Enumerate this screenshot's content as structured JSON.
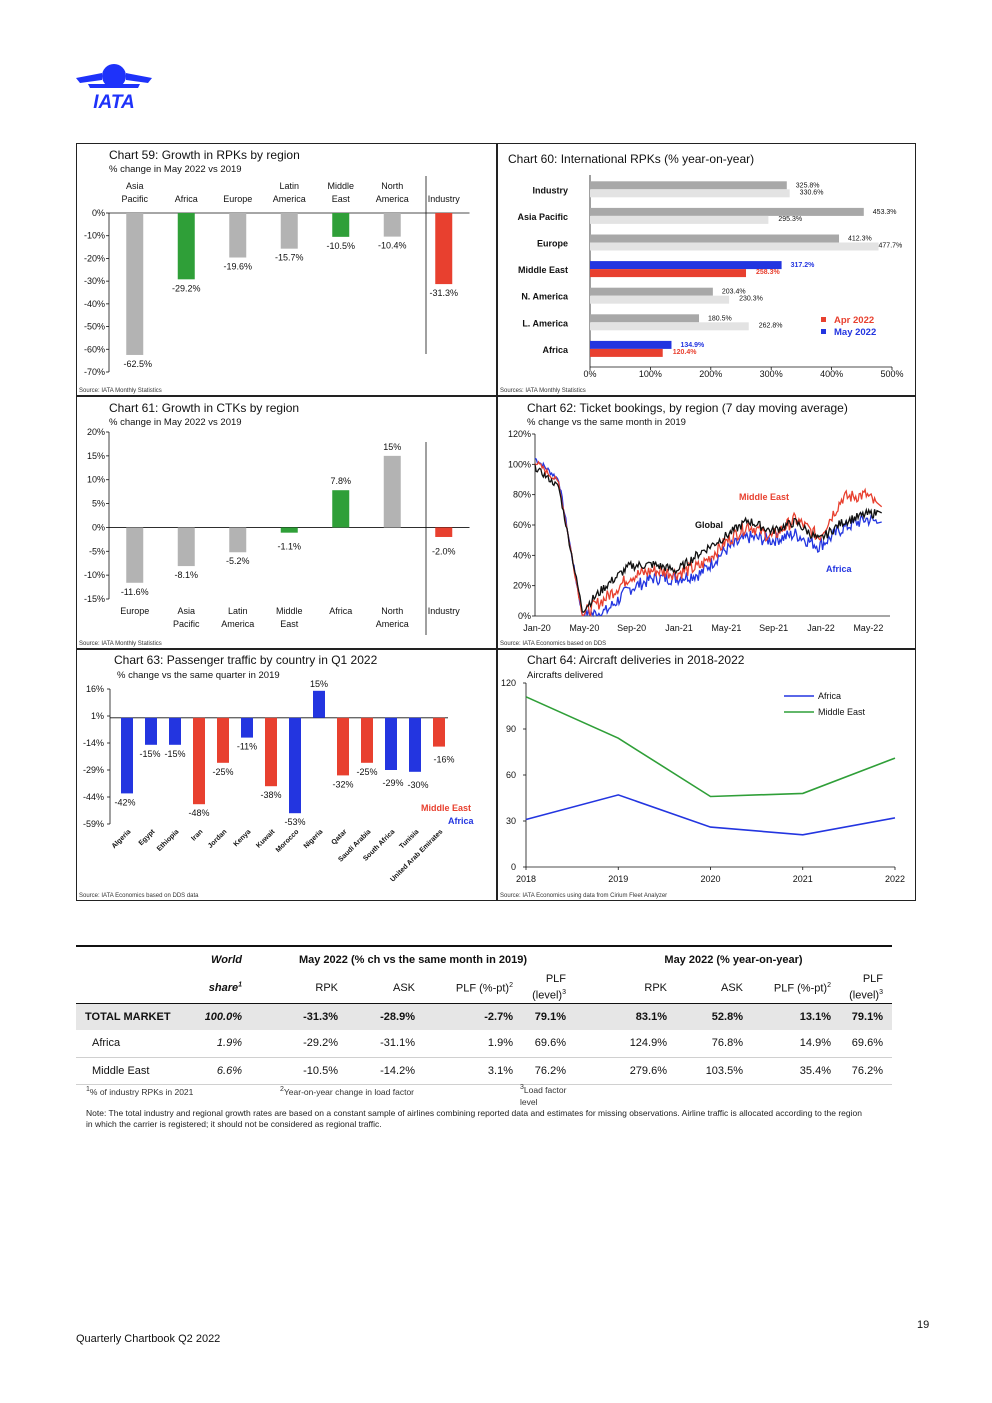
{
  "brand": {
    "name": "IATA",
    "color": "#1e32fa"
  },
  "colors": {
    "grey": "#b3b3b3",
    "lightgrey": "#e3e3e3",
    "darkgrey": "#a8a8a8",
    "red": "#e8402f",
    "green": "#2f9f38",
    "blue": "#2335e0",
    "black": "#111111",
    "darkgreen": "#2f9f38"
  },
  "charts": {
    "c59": {
      "title": "Chart 59: Growth in RPKs by region",
      "subtitle": "% change in May 2022 vs 2019",
      "source": "Source: IATA Monthly Statistics",
      "chart_data": {
        "type": "bar",
        "categories": [
          [
            "Asia",
            "Pacific"
          ],
          [
            "Africa"
          ],
          [
            "Europe"
          ],
          [
            "Latin",
            "America"
          ],
          [
            "Middle",
            "East"
          ],
          [
            "North",
            "America"
          ],
          [
            "Industry"
          ]
        ],
        "values": [
          -62.5,
          -29.2,
          -19.6,
          -15.7,
          -10.5,
          -10.4,
          -31.3
        ],
        "labels": [
          "-62.5%",
          "-29.2%",
          "-19.6%",
          "-15.7%",
          "-10.5%",
          "-10.4%",
          "-31.3%"
        ],
        "bar_colors": [
          "grey",
          "green",
          "grey",
          "grey",
          "green",
          "grey",
          "red"
        ],
        "ylim": [
          -70,
          0
        ],
        "yticks": [
          0,
          -10,
          -20,
          -30,
          -40,
          -50,
          -60,
          -70
        ],
        "yticklabels": [
          "0%",
          "-10%",
          "-20%",
          "-30%",
          "-40%",
          "-50%",
          "-60%",
          "-70%"
        ]
      }
    },
    "c60": {
      "title": "Chart 60: International RPKs (% year-on-year)",
      "source": "Sources: IATA Monthly Statistics",
      "chart_data": {
        "type": "bar",
        "orientation": "horizontal",
        "categories": [
          "Industry",
          "Asia Pacific",
          "Europe",
          "Middle East",
          "N. America",
          "L. America",
          "Africa"
        ],
        "series": [
          {
            "name": "May 2022",
            "values": [
              325.8,
              453.3,
              412.3,
              317.2,
              203.4,
              180.5,
              134.9
            ],
            "labels": [
              "325.8%",
              "453.3%",
              "412.3%",
              "317.2%",
              "203.4%",
              "180.5%",
              "134.9%"
            ]
          },
          {
            "name": "Apr 2022",
            "values": [
              330.6,
              295.3,
              477.7,
              258.3,
              230.3,
              262.8,
              120.4
            ],
            "labels": [
              "330.6%",
              "295.3%",
              "477.7%",
              "258.3%",
              "230.3%",
              "262.8%",
              "120.4%"
            ]
          }
        ],
        "xlim": [
          0,
          500
        ],
        "xticks": [
          0,
          100,
          200,
          300,
          400,
          500
        ],
        "xticklabels": [
          "0%",
          "100%",
          "200%",
          "300%",
          "400%",
          "500%"
        ],
        "legend": [
          "Apr 2022",
          "May 2022"
        ],
        "legend_position": "bottom-right"
      }
    },
    "c61": {
      "title": "Chart 61: Growth in CTKs by region",
      "subtitle": "% change in May 2022 vs 2019",
      "source": "Source: IATA Monthly Statistics",
      "chart_data": {
        "type": "bar",
        "categories": [
          [
            "Europe"
          ],
          [
            "Asia",
            "Pacific"
          ],
          [
            "Latin",
            "America"
          ],
          [
            "Middle",
            "East"
          ],
          [
            "Africa"
          ],
          [
            "North",
            "America"
          ],
          [
            "Industry"
          ]
        ],
        "values": [
          -11.6,
          -8.1,
          -5.2,
          -1.1,
          7.8,
          15,
          -2.0
        ],
        "labels": [
          "-11.6%",
          "-8.1%",
          "-5.2%",
          "-1.1%",
          "7.8%",
          "15%",
          "-2.0%"
        ],
        "bar_colors": [
          "grey",
          "grey",
          "grey",
          "green",
          "green",
          "grey",
          "red"
        ],
        "ylim": [
          -15,
          20
        ],
        "yticks": [
          20,
          15,
          10,
          5,
          0,
          -5,
          -10,
          -15
        ],
        "yticklabels": [
          "20%",
          "15%",
          "10%",
          "5%",
          "0%",
          "-5%",
          "-10%",
          "-15%"
        ]
      }
    },
    "c62": {
      "title": "Chart 62: Ticket bookings, by region (7 day moving average)",
      "subtitle": "% change vs the same month in 2019",
      "source": "Source: IATA Economics based on DDS",
      "chart_data": {
        "type": "line",
        "x": [
          "Jan-20",
          "Mar-20",
          "May-20",
          "Jul-20",
          "Sep-20",
          "Nov-20",
          "Jan-21",
          "Mar-21",
          "May-21",
          "Jul-21",
          "Sep-21",
          "Nov-21",
          "Jan-22",
          "Mar-22",
          "May-22",
          "Jun-22"
        ],
        "xticklabels": [
          "Jan-20",
          "May-20",
          "Sep-20",
          "Jan-21",
          "May-21",
          "Sep-21",
          "Jan-22",
          "May-22"
        ],
        "ylim": [
          0,
          120
        ],
        "yticks": [
          0,
          20,
          40,
          60,
          80,
          100,
          120
        ],
        "yticklabels": [
          "0%",
          "20%",
          "40%",
          "60%",
          "80%",
          "100%",
          "120%"
        ],
        "series": [
          {
            "name": "Global",
            "color": "black",
            "values": [
              98,
              85,
              4,
              20,
              33,
              34,
              30,
              42,
              52,
              63,
              56,
              62,
              50,
              62,
              67,
              68
            ]
          },
          {
            "name": "Middle East",
            "color": "red",
            "values": [
              102,
              88,
              1,
              12,
              26,
              30,
              28,
              33,
              48,
              60,
              52,
              64,
              52,
              78,
              80,
              72
            ]
          },
          {
            "name": "Africa",
            "color": "blue",
            "values": [
              104,
              90,
              0,
              3,
              18,
              25,
              25,
              28,
              43,
              52,
              50,
              54,
              46,
              58,
              64,
              62
            ]
          }
        ]
      }
    },
    "c63": {
      "title": "Chart 63: Passenger traffic by country in Q1 2022",
      "subtitle": "% change vs the same quarter in 2019",
      "source": "Source: IATA Economics based on DDS data",
      "chart_data": {
        "type": "bar",
        "categories": [
          "Algeria",
          "Egypt",
          "Ethiopia",
          "Iran",
          "Jordan",
          "Kenya",
          "Kuwait",
          "Morocco",
          "Nigeria",
          "Qatar",
          "Saudi Arabia",
          "South Africa",
          "Tunisia",
          "United Arab Emirates"
        ],
        "values": [
          -42,
          -15,
          -15,
          -48,
          -25,
          -11,
          -38,
          -53,
          15,
          -32,
          -25,
          -29,
          -30,
          -16
        ],
        "labels": [
          "-42%",
          "-15%",
          "-15%",
          "-48%",
          "-25%",
          "-11%",
          "-38%",
          "-53%",
          "15%",
          "-32%",
          "-25%",
          "-29%",
          "-30%",
          "-16%"
        ],
        "bar_colors": [
          "blue",
          "blue",
          "blue",
          "red",
          "red",
          "blue",
          "red",
          "blue",
          "blue",
          "red",
          "red",
          "blue",
          "blue",
          "red"
        ],
        "ylim": [
          -59,
          16
        ],
        "yticks": [
          16,
          1,
          -14,
          -29,
          -44,
          -59
        ],
        "yticklabels": [
          "16%",
          "1%",
          "-14%",
          "-29%",
          "-44%",
          "-59%"
        ],
        "legend": [
          "Middle East",
          "Africa"
        ]
      }
    },
    "c64": {
      "title": "Chart 64: Aircraft deliveries in 2018-2022",
      "subtitle": "Aircrafts delivered",
      "source": "Source: IATA Economics using data from Cirium Fleet Analyzer",
      "chart_data": {
        "type": "line",
        "x": [
          "2018",
          "2019",
          "2020",
          "2021",
          "2022"
        ],
        "ylim": [
          0,
          120
        ],
        "yticks": [
          0,
          30,
          60,
          90,
          120
        ],
        "yticklabels": [
          "0",
          "30",
          "60",
          "90",
          "120"
        ],
        "series": [
          {
            "name": "Africa",
            "color": "blue",
            "values": [
              31,
              47,
              26,
              21,
              32
            ]
          },
          {
            "name": "Middle East",
            "color": "darkgreen",
            "values": [
              111,
              84,
              46,
              48,
              71
            ]
          }
        ],
        "legend_position": "top-right"
      }
    }
  },
  "table": {
    "world_label": "World",
    "share_label": "share",
    "share_sup": "1",
    "group1": "May 2022 (% ch vs the same month in 2019)",
    "group2": "May 2022 (% year-on-year)",
    "cols": [
      "RPK",
      "ASK",
      "PLF (%-pt)",
      "PLF"
    ],
    "col_sup": [
      "",
      "",
      "2",
      ""
    ],
    "plf_level": "(level)",
    "plf_level_sup": "3",
    "rows": [
      {
        "name": "TOTAL MARKET",
        "share": "100.0%",
        "v": [
          "-31.3%",
          "-28.9%",
          "-2.7%",
          "79.1%",
          "83.1%",
          "52.8%",
          "13.1%",
          "79.1%"
        ]
      },
      {
        "name": "Africa",
        "share": "1.9%",
        "v": [
          "-29.2%",
          "-31.1%",
          "1.9%",
          "69.6%",
          "124.9%",
          "76.8%",
          "14.9%",
          "69.6%"
        ]
      },
      {
        "name": "Middle East",
        "share": "6.6%",
        "v": [
          "-10.5%",
          "-14.2%",
          "3.1%",
          "76.2%",
          "279.6%",
          "103.5%",
          "35.4%",
          "76.2%"
        ]
      }
    ],
    "footnotes": [
      {
        "sup": "1",
        "text": "% of industry RPKs in 2021"
      },
      {
        "sup": "2",
        "text": "Year-on-year change in load factor"
      },
      {
        "sup": "3",
        "text": "Load factor",
        "text2": "level"
      }
    ],
    "note": "Note: The total industry and regional growth rates are based on a constant sample of airlines combining reported data and estimates for missing observations. Airline traffic is allocated according to the region in which the carrier is registered; it should not be considered as regional traffic."
  },
  "page_number": "19",
  "footer": "Quarterly Chartbook Q2 2022"
}
